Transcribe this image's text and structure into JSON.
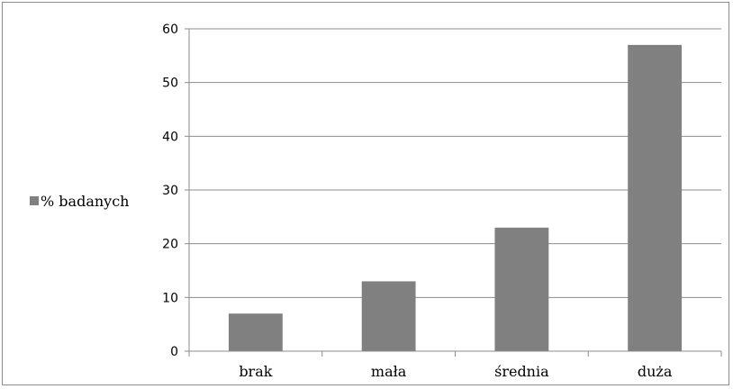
{
  "chart_data": {
    "type": "bar",
    "categories": [
      "brak",
      "mała",
      "średnia",
      "duża"
    ],
    "series": [
      {
        "name": "% badanych",
        "values": [
          7,
          13,
          23,
          57
        ],
        "color": "#808080"
      }
    ],
    "y_ticks": [
      "0",
      "10",
      "20",
      "30",
      "40",
      "50",
      "60"
    ],
    "ylim": [
      0,
      60
    ],
    "grid": true,
    "legend_position": "left"
  }
}
